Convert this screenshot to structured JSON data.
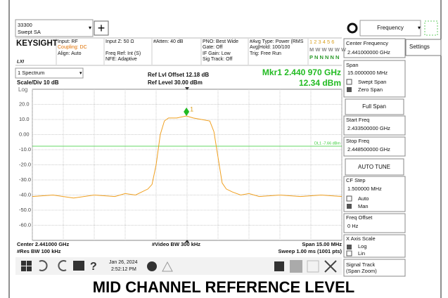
{
  "tab": {
    "line1": "33300",
    "line2": "Swept SA"
  },
  "header": {
    "brand": "KEYSIGHT",
    "logo": "LXI",
    "col1": [
      "Input: RF",
      "Coupling: DC",
      "Align: Auto"
    ],
    "col2": [
      "Input Z: 50 Ω",
      "Freq Ref: Int (S)",
      "NFE: Adaptive"
    ],
    "col3": [
      "#Atten: 40 dB"
    ],
    "col4": [
      "PNO: Best Wide",
      "Gate: Off",
      "IF Gain: Low",
      "Sig Track: Off"
    ],
    "col5": [
      "#Avg Type: Power (RMS",
      "Avg|Hold: 100/100",
      "Trig: Free Run"
    ],
    "traces": [
      "1 2 3 4 5 6",
      "M W W W W W",
      "P N N N N N"
    ]
  },
  "window": {
    "name": "1 Spectrum",
    "scale": "Scale/Div 10 dB",
    "yscale": "Log",
    "ref_offset": "Ref Lvl Offset 12.18 dB",
    "ref_level": "Ref Level 30.00 dBm",
    "marker_label": "Mkr1  2.440 970 GHz",
    "marker_value": "12.34 dBm"
  },
  "chart_data": {
    "type": "line",
    "x": [
      2.4335,
      2.4345,
      2.4355,
      2.4365,
      2.4375,
      2.438,
      2.4385,
      2.4388,
      2.4391,
      2.4393,
      2.4395,
      2.4397,
      2.4399,
      2.4401,
      2.4405,
      2.44097,
      2.4413,
      2.4417,
      2.4421,
      2.4423,
      2.4425,
      2.4427,
      2.4429,
      2.4432,
      2.4436,
      2.444,
      2.4445,
      2.4455,
      2.4465,
      2.4475,
      2.4485
    ],
    "series": [
      {
        "color": "#f0a020",
        "values": [
          -41,
          -40,
          -42,
          -40,
          -41,
          -39,
          -40,
          -38,
          -36,
          -33,
          -20,
          0,
          9,
          11,
          11,
          12.34,
          11,
          10,
          9,
          2,
          -15,
          -32,
          -36,
          -38,
          -40,
          -39,
          -41,
          -40,
          -41,
          -40,
          -41
        ]
      }
    ],
    "xlim": [
      2.4335,
      2.4485
    ],
    "ylim": [
      -70,
      30
    ],
    "xticks": [
      2.4335,
      2.435,
      2.4365,
      2.438,
      2.4395,
      2.441,
      2.4425,
      2.444,
      2.4455,
      2.447,
      2.4485
    ],
    "yticks": [
      {
        "value": 20,
        "label": "20.0"
      },
      {
        "value": 10,
        "label": "10.0"
      },
      {
        "value": 0,
        "label": "0.00"
      },
      {
        "value": -10,
        "label": "-10.0"
      },
      {
        "value": -20,
        "label": "-20.0"
      },
      {
        "value": -30,
        "label": "-30.0"
      },
      {
        "value": -40,
        "label": "-40.0"
      },
      {
        "value": -50,
        "label": "-50.0"
      },
      {
        "value": -60,
        "label": "-60.0"
      }
    ],
    "grid": true,
    "display_line": {
      "value": -7.66,
      "label": "DL1 -7.66 dBm",
      "color": "#33cc33"
    },
    "marker": {
      "x": 2.44097,
      "value": 12.34,
      "label": "1",
      "color": "#22bb22"
    }
  },
  "footer": {
    "center": "Center 2.441000 GHz",
    "res_bw": "#Res BW 100 kHz",
    "video_bw": "#Video BW 300 kHz",
    "span": "Span 15.00 MHz",
    "sweep": "Sweep 1.00 ms (1001 pts)"
  },
  "taskbar": {
    "date": "Jan 26, 2024",
    "time": "2:52:12 PM"
  },
  "panel": {
    "menu": "Frequency",
    "settings": "Settings",
    "center_label": "Center Frequency",
    "center_value": "2.441000000 GHz",
    "span_label": "Span",
    "span_value": "15.0000000 MHz",
    "swept_span": "Swept Span",
    "zero_span": "Zero Span",
    "full_span": "Full Span",
    "start_label": "Start Freq",
    "start_value": "2.433500000 GHz",
    "stop_label": "Stop Freq",
    "stop_value": "2.448500000 GHz",
    "auto_tune": "AUTO TUNE",
    "cf_label": "CF Step",
    "cf_value": "1.500000 MHz",
    "auto": "Auto",
    "man": "Man",
    "offset_label": "Freq Offset",
    "offset_value": "0 Hz",
    "xscale_label": "X Axis Scale",
    "log": "Log",
    "lin": "Lin",
    "track_label": "Signal Track",
    "track_sub": "(Span Zoom)"
  },
  "caption": "MID CHANNEL REFERENCE LEVEL"
}
